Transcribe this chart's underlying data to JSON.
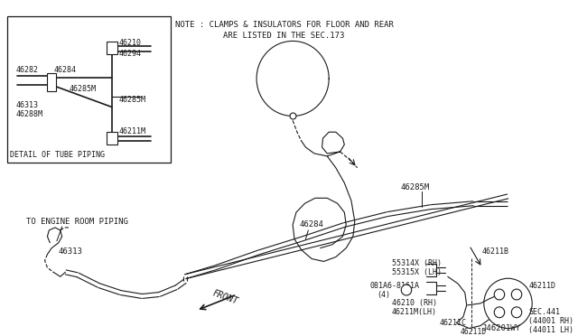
{
  "bg_color": "#ffffff",
  "line_color": "#1a1a1a",
  "fig_id": "J46201WY",
  "note_line1": "NOTE : CLAMPS & INSULATORS FOR FLOOR AND REAR",
  "note_line2": "ARE LISTED IN THE SEC.173",
  "detail_label": "DETAIL OF TUBE PIPING",
  "front_label": "FRONT",
  "engine_label": "TO ENGINE ROOM PIPING",
  "part_46284": "46284",
  "part_46285M": "46285M",
  "part_46313": "46313",
  "part_46211B": "46211B",
  "part_55314X": "55314X (RH)",
  "part_55315X": "55315X (LH)",
  "part_081A6": "081A6-8161A",
  "part_081A6_qty": "(4)",
  "part_46210": "46210 (RH)",
  "part_46211M": "46211M(LH)",
  "part_46211C": "46211C",
  "part_46211D_1": "46211D",
  "part_46211D_2": "46211D",
  "part_SEC441": "SEC.441",
  "part_44001": "(44001 RH)",
  "part_44011": "(44011 LH)",
  "detail_46282": "46282",
  "detail_46284": "46284",
  "detail_46210": "46210",
  "detail_46294": "46294",
  "detail_46285M_1": "46285M",
  "detail_46285M_2": "46285M",
  "detail_46313": "46313",
  "detail_46288M": "46288M",
  "detail_46211M": "46211M"
}
